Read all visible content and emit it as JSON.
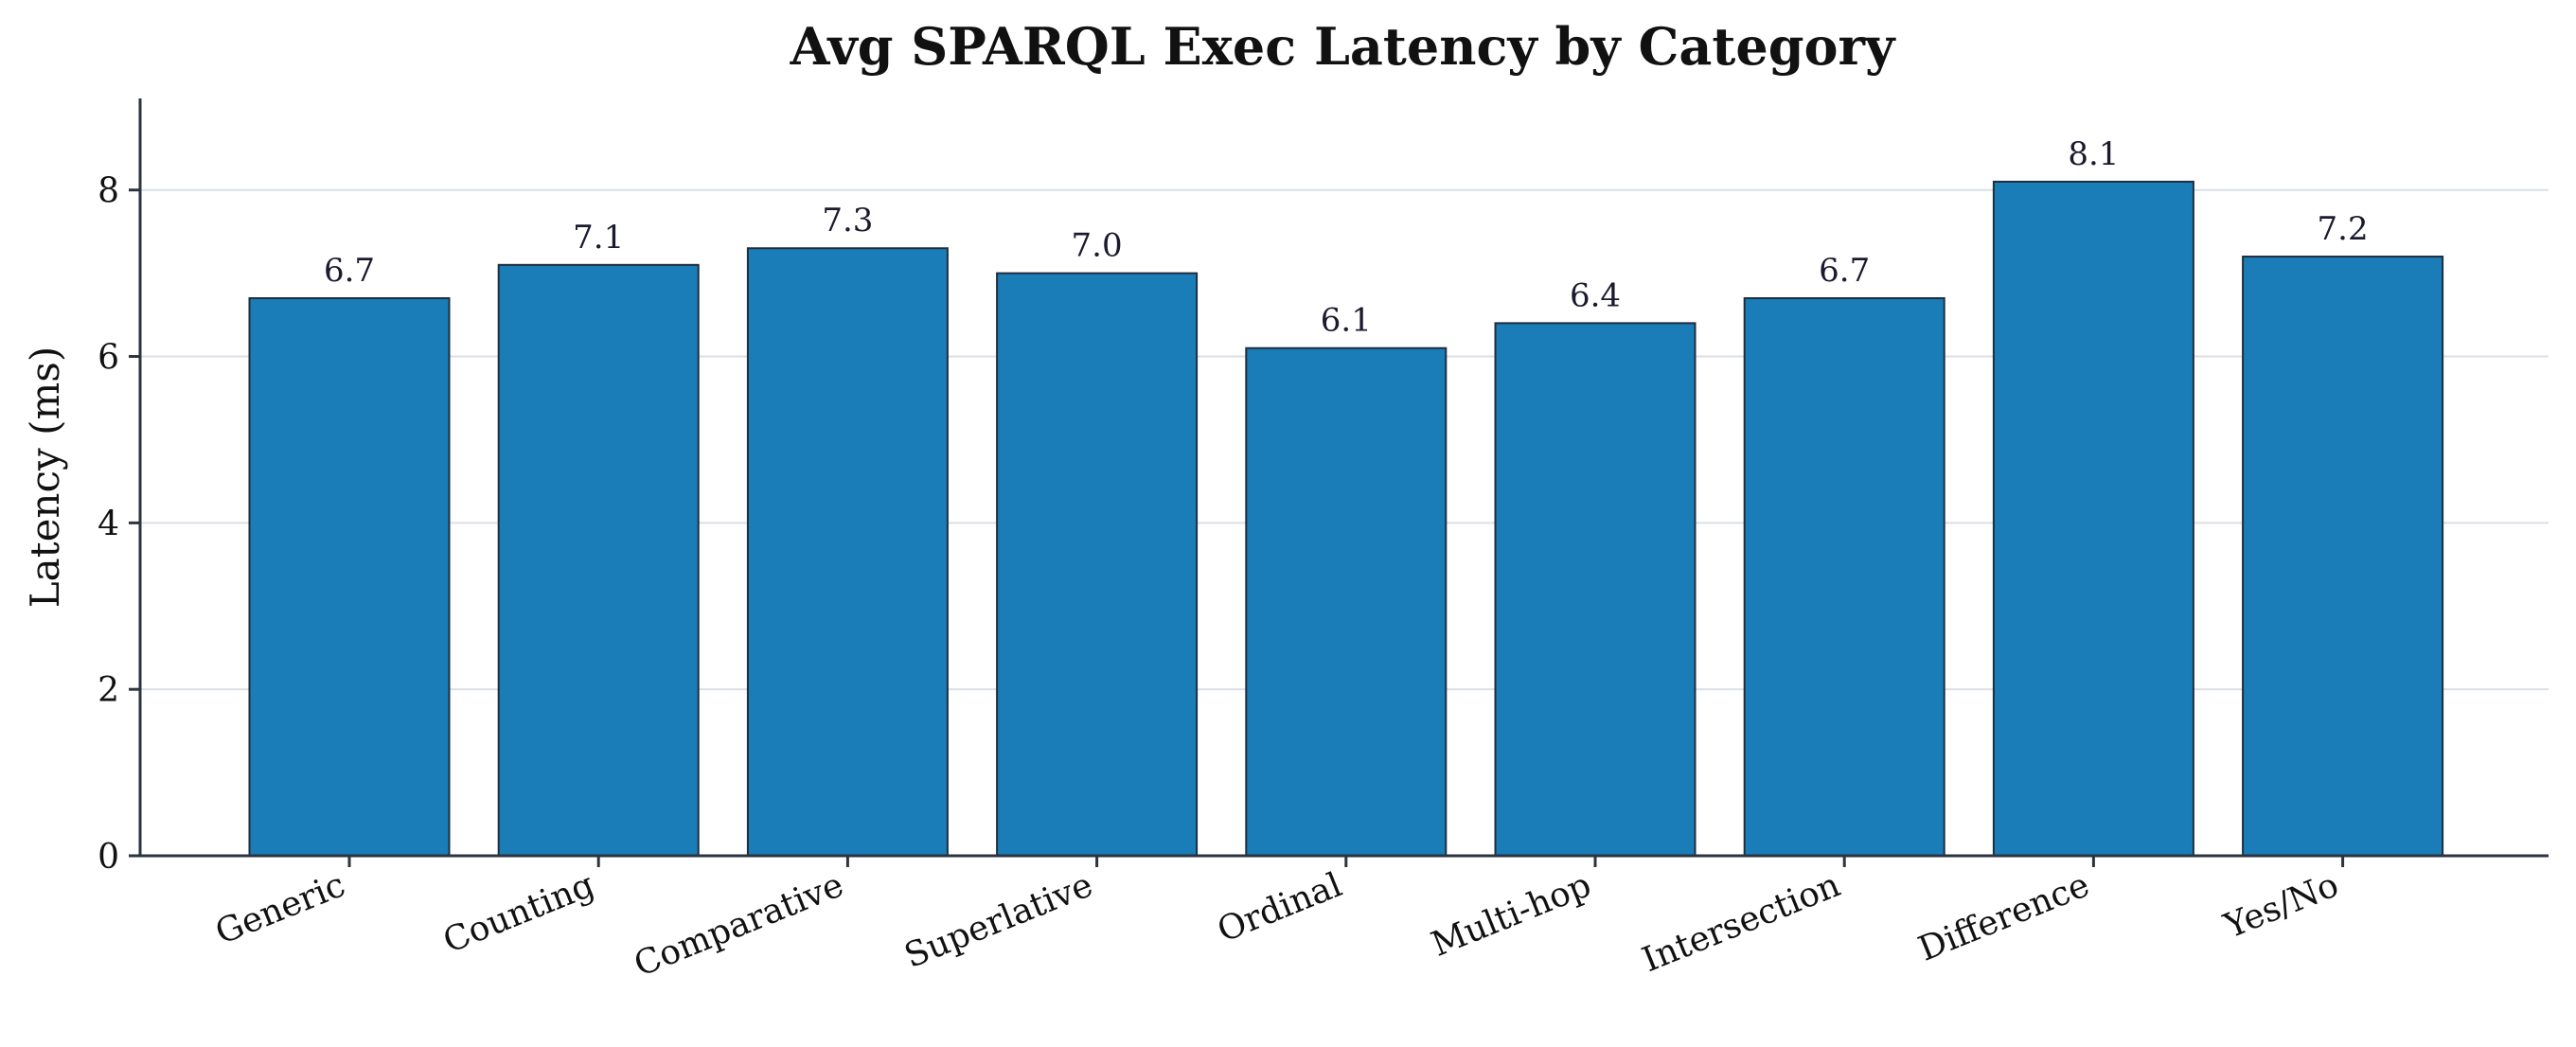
{
  "chart_data": {
    "type": "bar",
    "title": "Avg SPARQL Exec Latency by Category",
    "xlabel": "",
    "ylabel": "Latency (ms)",
    "categories": [
      "Generic",
      "Counting",
      "Comparative",
      "Superlative",
      "Ordinal",
      "Multi-hop",
      "Intersection",
      "Difference",
      "Yes/No"
    ],
    "values": [
      6.7,
      7.1,
      7.3,
      7.0,
      6.1,
      6.4,
      6.7,
      8.1,
      7.2
    ],
    "value_labels": [
      "6.7",
      "7.1",
      "7.3",
      "7.0",
      "6.1",
      "6.4",
      "6.7",
      "8.1",
      "7.2"
    ],
    "ylim": [
      0,
      9.1
    ],
    "yticks": [
      0,
      2,
      4,
      6,
      8
    ],
    "ytick_labels": [
      "0",
      "2",
      "4",
      "6",
      "8"
    ],
    "grid": "horizontal",
    "legend": "none",
    "colors": {
      "bar": "#1a7db8",
      "bar_edge": "#1f2d3d"
    }
  }
}
